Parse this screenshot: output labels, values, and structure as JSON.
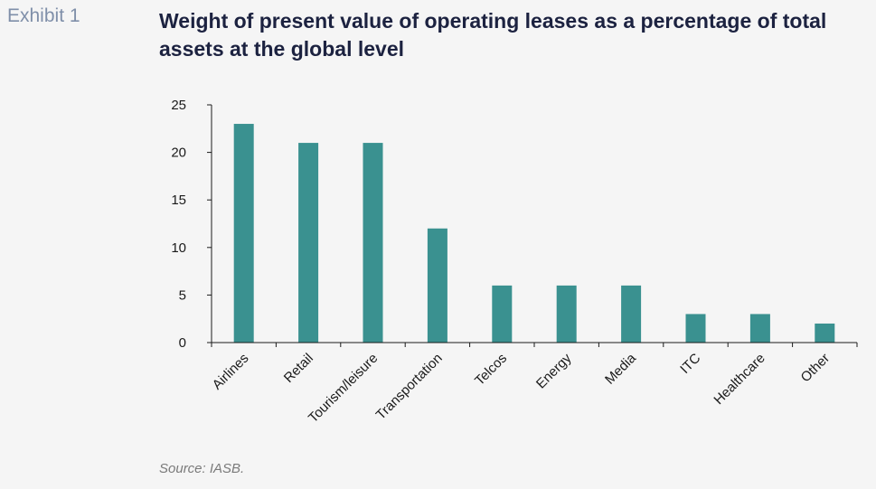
{
  "header": {
    "exhibit": "Exhibit 1",
    "title": "Weight of present value of operating leases as a percentage of total assets at the global level"
  },
  "footer": {
    "source": "Source: IASB."
  },
  "colors": {
    "bar": "#3a9190",
    "axis": "#1a1a1a"
  },
  "chart_data": {
    "type": "bar",
    "categories": [
      "Airlines",
      "Retail",
      "Tourism/leisure",
      "Transportation",
      "Telcos",
      "Energy",
      "Media",
      "ITC",
      "Healthcare",
      "Other"
    ],
    "values": [
      23,
      21,
      21,
      12,
      6,
      6,
      6,
      3,
      3,
      2
    ],
    "ylim": [
      0,
      25
    ],
    "yticks": [
      0,
      5,
      10,
      15,
      20,
      25
    ],
    "grid": false,
    "legend": "none"
  }
}
